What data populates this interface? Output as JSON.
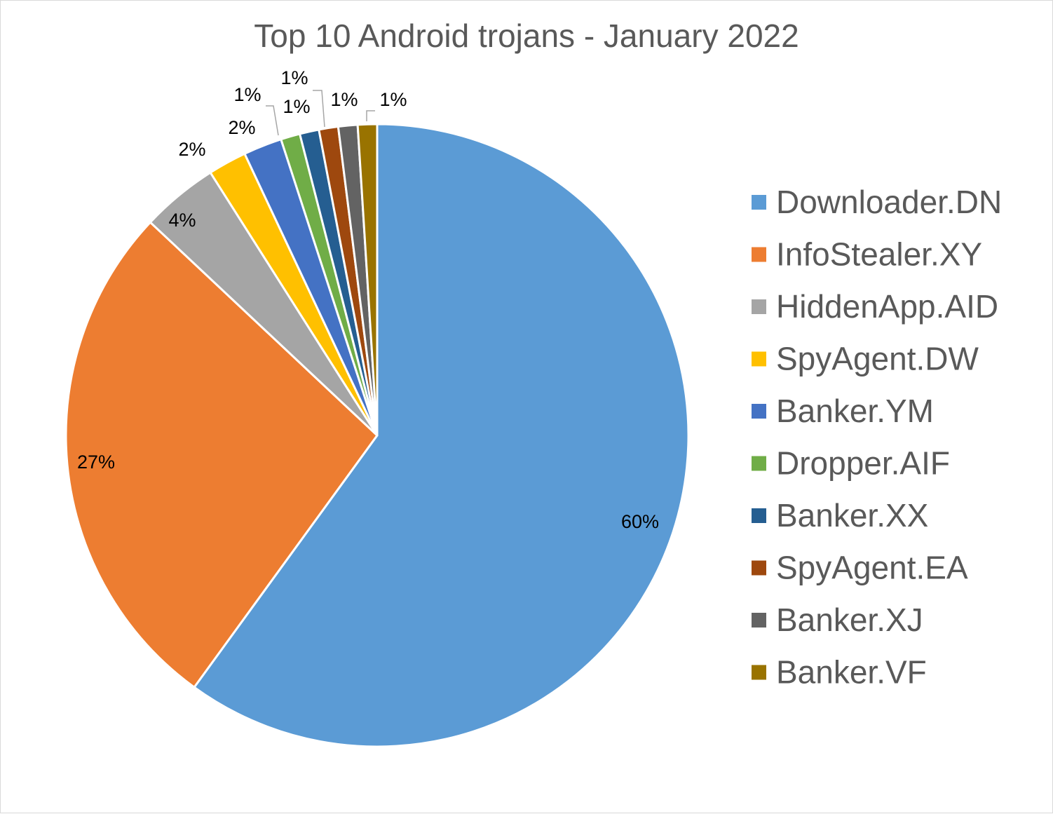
{
  "chart_data": {
    "type": "pie",
    "title": "Top 10 Android trojans - January 2022",
    "categories": [
      "Downloader.DN",
      "InfoStealer.XY",
      "HiddenApp.AID",
      "SpyAgent.DW",
      "Banker.YM",
      "Dropper.AIF",
      "Banker.XX",
      "SpyAgent.EA",
      "Banker.XJ",
      "Banker.VF"
    ],
    "values": [
      60,
      27,
      4,
      2,
      2,
      1,
      1,
      1,
      1,
      1
    ],
    "data_labels": [
      "60%",
      "27%",
      "4%",
      "2%",
      "2%",
      "1%",
      "1%",
      "1%",
      "1%",
      "1%"
    ],
    "colors": [
      "#5b9bd5",
      "#ed7d31",
      "#a5a5a5",
      "#ffc000",
      "#4472c4",
      "#70ad47",
      "#255e91",
      "#9e480e",
      "#636363",
      "#997300"
    ],
    "legend_position": "right"
  }
}
